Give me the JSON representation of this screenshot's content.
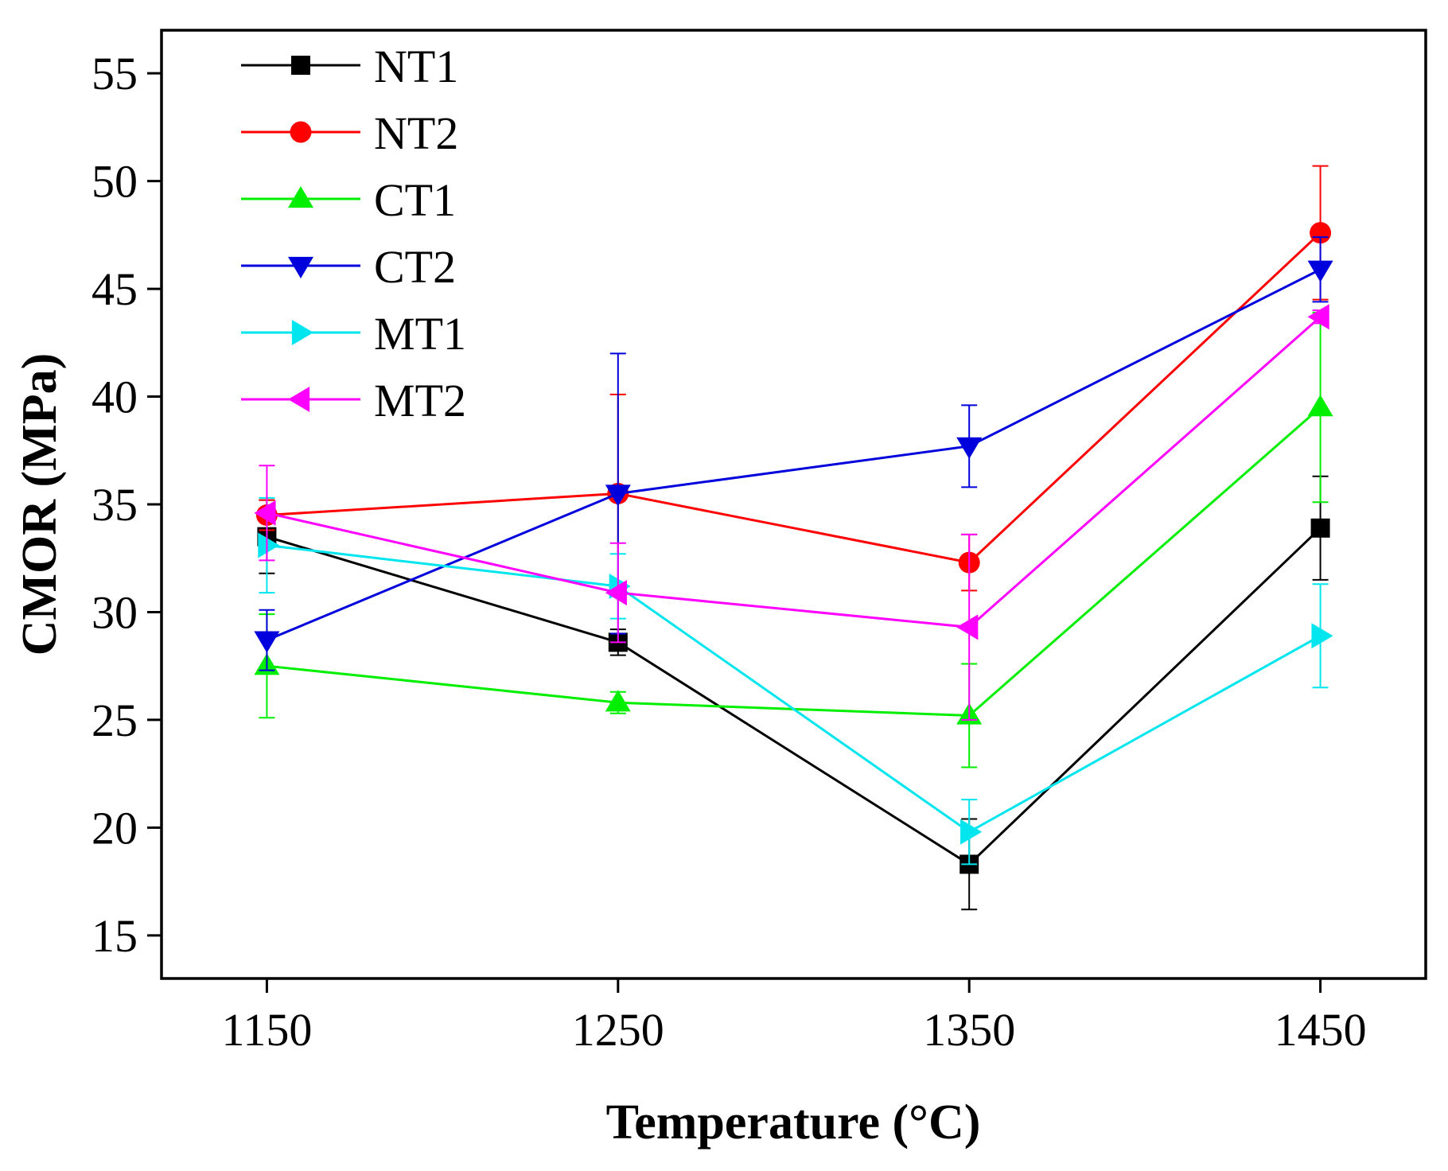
{
  "chart_data": {
    "type": "line",
    "title": "",
    "xlabel": "Temperature (°C)",
    "ylabel": "CMOR (MPa)",
    "x": [
      1150,
      1250,
      1350,
      1450
    ],
    "xlim": [
      1120,
      1480
    ],
    "ylim": [
      13,
      57
    ],
    "xticks": [
      "1150",
      "1250",
      "1350",
      "1450"
    ],
    "yticks": [
      "15",
      "20",
      "25",
      "30",
      "35",
      "40",
      "45",
      "50",
      "55"
    ],
    "grid": false,
    "legend_position": "top-left",
    "series": [
      {
        "name": "NT1",
        "color": "#000000",
        "marker": "square",
        "values": [
          33.5,
          28.6,
          18.3,
          33.9
        ],
        "errors": [
          1.7,
          0.6,
          2.1,
          2.4
        ]
      },
      {
        "name": "NT2",
        "color": "#ff0000",
        "marker": "circle",
        "values": [
          34.5,
          35.5,
          32.3,
          47.6
        ],
        "errors": [
          0.7,
          4.6,
          1.3,
          3.1
        ]
      },
      {
        "name": "CT1",
        "color": "#00ee00",
        "marker": "triangle-up",
        "values": [
          27.5,
          25.8,
          25.2,
          39.5
        ],
        "errors": [
          2.4,
          0.5,
          2.4,
          4.4
        ]
      },
      {
        "name": "CT2",
        "color": "#0000dd",
        "marker": "triangle-down",
        "values": [
          28.7,
          35.5,
          37.7,
          45.9
        ],
        "errors": [
          1.4,
          6.5,
          1.9,
          1.5
        ]
      },
      {
        "name": "MT1",
        "color": "#00e5ee",
        "marker": "triangle-right",
        "values": [
          33.1,
          31.2,
          19.8,
          28.9
        ],
        "errors": [
          2.2,
          1.5,
          1.5,
          2.4
        ]
      },
      {
        "name": "MT2",
        "color": "#ff00ff",
        "marker": "triangle-left",
        "values": [
          34.6,
          30.9,
          29.3,
          43.7
        ],
        "errors": [
          2.2,
          2.3,
          4.3,
          0.3
        ]
      }
    ]
  }
}
